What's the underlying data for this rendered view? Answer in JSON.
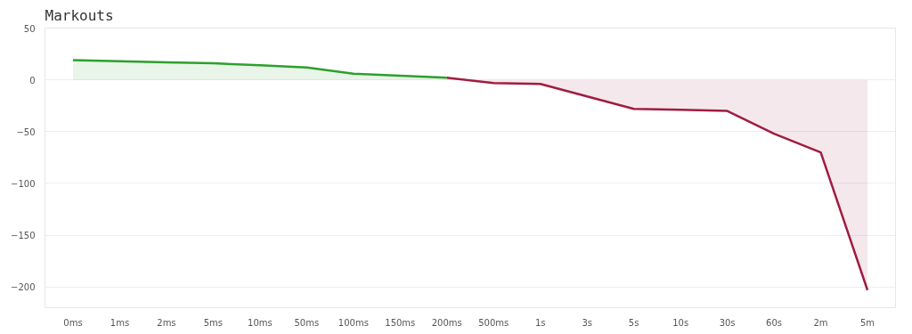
{
  "chart_data": {
    "type": "area",
    "title": "Markouts",
    "categories": [
      "0ms",
      "1ms",
      "2ms",
      "5ms",
      "10ms",
      "50ms",
      "100ms",
      "150ms",
      "200ms",
      "500ms",
      "1s",
      "3s",
      "5s",
      "10s",
      "30s",
      "60s",
      "2m",
      "5m"
    ],
    "series": [
      {
        "color": "#2ca02c",
        "values": [
          19,
          18,
          17,
          16,
          14,
          12,
          6,
          4,
          2,
          null,
          null,
          null,
          null,
          null,
          null,
          null,
          null,
          null
        ]
      },
      {
        "color": "#a01c40",
        "values": [
          null,
          null,
          null,
          null,
          null,
          null,
          null,
          null,
          2,
          -3,
          -4,
          -16,
          -28,
          -29,
          -30,
          -52,
          -70,
          -203
        ]
      }
    ],
    "ylim": [
      -220,
      50
    ],
    "yticks": [
      50,
      0,
      -50,
      -100,
      -150,
      -200
    ],
    "grid": "y"
  }
}
